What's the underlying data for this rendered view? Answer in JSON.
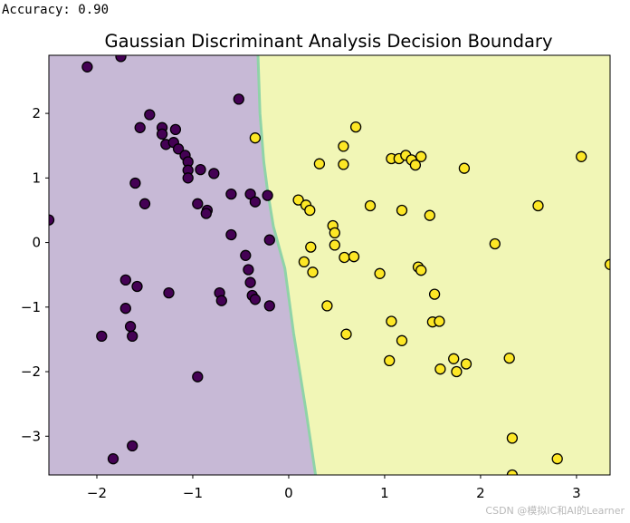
{
  "console": {
    "output_text": "Accuracy: 0.90"
  },
  "watermark": {
    "text": "CSDN @模拟IC和AI的Learner"
  },
  "chart_data": {
    "type": "scatter",
    "title": "Gaussian Discriminant Analysis Decision Boundary",
    "xlabel": "",
    "ylabel": "",
    "xlim": [
      -2.5,
      3.35
    ],
    "ylim": [
      -3.6,
      2.9
    ],
    "x_ticks": [
      -2,
      -1,
      0,
      1,
      2,
      3
    ],
    "y_ticks": [
      -3,
      -2,
      -1,
      0,
      1,
      2
    ],
    "x_tick_labels": [
      "−2",
      "−1",
      "0",
      "1",
      "2",
      "3"
    ],
    "y_tick_labels": [
      "−3",
      "−2",
      "−1",
      "0",
      "1",
      "2"
    ],
    "grid": false,
    "legend": "none",
    "colors": {
      "class_0_region": "#c7b9d6",
      "class_1_region": "#f1f6b6",
      "class_0_point": "#440154",
      "class_1_point": "#fde725",
      "boundary_edge": "#8fd3a8",
      "point_edge": "#000000"
    },
    "decision_boundary": [
      {
        "y": 2.9,
        "x": -0.32
      },
      {
        "y": 2.0,
        "x": -0.3
      },
      {
        "y": 1.25,
        "x": -0.26
      },
      {
        "y": 0.8,
        "x": -0.22
      },
      {
        "y": 0.25,
        "x": -0.16
      },
      {
        "y": -0.4,
        "x": -0.04
      },
      {
        "y": -1.4,
        "x": 0.05
      },
      {
        "y": -2.6,
        "x": 0.18
      },
      {
        "y": -3.6,
        "x": 0.28
      }
    ],
    "series": [
      {
        "values": [
          {
            "x": -2.1,
            "y": 2.72
          },
          {
            "x": -1.75,
            "y": 2.88
          },
          {
            "x": -1.45,
            "y": 1.98
          },
          {
            "x": -1.55,
            "y": 1.78
          },
          {
            "x": -1.32,
            "y": 1.78
          },
          {
            "x": -1.32,
            "y": 1.68
          },
          {
            "x": -1.18,
            "y": 1.75
          },
          {
            "x": -1.28,
            "y": 1.52
          },
          {
            "x": -1.2,
            "y": 1.55
          },
          {
            "x": -1.15,
            "y": 1.45
          },
          {
            "x": -1.08,
            "y": 1.35
          },
          {
            "x": -1.05,
            "y": 1.25
          },
          {
            "x": -1.05,
            "y": 1.12
          },
          {
            "x": -1.05,
            "y": 1.0
          },
          {
            "x": -0.92,
            "y": 1.13
          },
          {
            "x": -0.78,
            "y": 1.07
          },
          {
            "x": -0.52,
            "y": 2.22
          },
          {
            "x": -1.6,
            "y": 0.92
          },
          {
            "x": -1.5,
            "y": 0.6
          },
          {
            "x": -0.95,
            "y": 0.6
          },
          {
            "x": -0.85,
            "y": 0.5
          },
          {
            "x": -0.86,
            "y": 0.45
          },
          {
            "x": -0.6,
            "y": 0.75
          },
          {
            "x": -0.4,
            "y": 0.75
          },
          {
            "x": -0.35,
            "y": 0.63
          },
          {
            "x": -0.6,
            "y": 0.12
          },
          {
            "x": -0.2,
            "y": 0.04
          },
          {
            "x": -2.5,
            "y": 0.35
          },
          {
            "x": -0.45,
            "y": -0.2
          },
          {
            "x": -0.42,
            "y": -0.42
          },
          {
            "x": -0.4,
            "y": -0.62
          },
          {
            "x": -0.38,
            "y": -0.82
          },
          {
            "x": -0.35,
            "y": -0.88
          },
          {
            "x": -0.2,
            "y": -0.98
          },
          {
            "x": -0.22,
            "y": 0.73
          },
          {
            "x": -1.7,
            "y": -0.58
          },
          {
            "x": -1.58,
            "y": -0.68
          },
          {
            "x": -1.7,
            "y": -1.02
          },
          {
            "x": -1.65,
            "y": -1.3
          },
          {
            "x": -1.63,
            "y": -1.45
          },
          {
            "x": -1.95,
            "y": -1.45
          },
          {
            "x": -1.25,
            "y": -0.78
          },
          {
            "x": -0.72,
            "y": -0.78
          },
          {
            "x": -0.7,
            "y": -0.9
          },
          {
            "x": -0.95,
            "y": -2.08
          },
          {
            "x": -1.83,
            "y": -3.35
          },
          {
            "x": -1.63,
            "y": -3.15
          }
        ]
      },
      {
        "values": [
          {
            "x": -0.35,
            "y": 1.62
          },
          {
            "x": 0.32,
            "y": 1.22
          },
          {
            "x": 0.57,
            "y": 1.49
          },
          {
            "x": 0.57,
            "y": 1.21
          },
          {
            "x": 0.7,
            "y": 1.79
          },
          {
            "x": 1.07,
            "y": 1.3
          },
          {
            "x": 1.15,
            "y": 1.3
          },
          {
            "x": 1.22,
            "y": 1.35
          },
          {
            "x": 1.28,
            "y": 1.28
          },
          {
            "x": 1.32,
            "y": 1.2
          },
          {
            "x": 1.38,
            "y": 1.33
          },
          {
            "x": 1.83,
            "y": 1.15
          },
          {
            "x": 3.05,
            "y": 1.33
          },
          {
            "x": 0.1,
            "y": 0.66
          },
          {
            "x": 0.18,
            "y": 0.58
          },
          {
            "x": 0.22,
            "y": 0.5
          },
          {
            "x": 0.85,
            "y": 0.57
          },
          {
            "x": 1.18,
            "y": 0.5
          },
          {
            "x": 1.47,
            "y": 0.42
          },
          {
            "x": 2.6,
            "y": 0.57
          },
          {
            "x": 0.46,
            "y": 0.26
          },
          {
            "x": 0.48,
            "y": 0.15
          },
          {
            "x": 0.48,
            "y": -0.04
          },
          {
            "x": 0.23,
            "y": -0.07
          },
          {
            "x": 0.58,
            "y": -0.23
          },
          {
            "x": 0.68,
            "y": -0.22
          },
          {
            "x": 0.16,
            "y": -0.3
          },
          {
            "x": 0.25,
            "y": -0.46
          },
          {
            "x": 0.95,
            "y": -0.48
          },
          {
            "x": 1.35,
            "y": -0.38
          },
          {
            "x": 1.38,
            "y": -0.43
          },
          {
            "x": 2.15,
            "y": -0.02
          },
          {
            "x": 3.35,
            "y": -0.34
          },
          {
            "x": 0.4,
            "y": -0.98
          },
          {
            "x": 1.52,
            "y": -0.8
          },
          {
            "x": 1.07,
            "y": -1.22
          },
          {
            "x": 1.5,
            "y": -1.23
          },
          {
            "x": 1.57,
            "y": -1.22
          },
          {
            "x": 0.6,
            "y": -1.42
          },
          {
            "x": 1.18,
            "y": -1.52
          },
          {
            "x": 1.05,
            "y": -1.83
          },
          {
            "x": 1.58,
            "y": -1.96
          },
          {
            "x": 1.72,
            "y": -1.8
          },
          {
            "x": 1.75,
            "y": -2.0
          },
          {
            "x": 1.85,
            "y": -1.88
          },
          {
            "x": 2.3,
            "y": -1.79
          },
          {
            "x": 2.33,
            "y": -3.03
          },
          {
            "x": 2.8,
            "y": -3.35
          },
          {
            "x": 2.33,
            "y": -3.6
          }
        ]
      }
    ]
  }
}
